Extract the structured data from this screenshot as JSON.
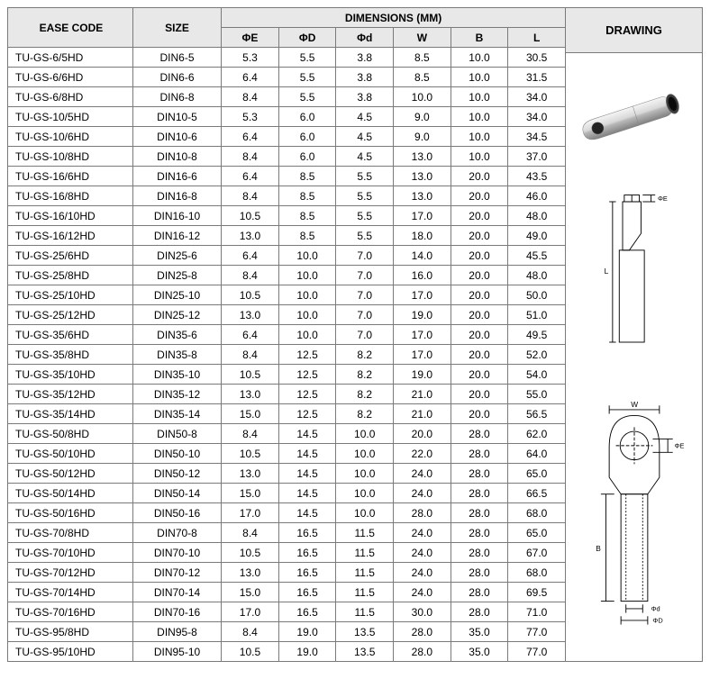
{
  "headers": {
    "ease_code": "EASE CODE",
    "size": "SIZE",
    "dimensions": "DIMENSIONS (MM)",
    "drawing": "DRAWING",
    "cols": [
      "ΦE",
      "ΦD",
      "Φd",
      "W",
      "B",
      "L"
    ]
  },
  "colors": {
    "header_bg": "#e8e8e8",
    "border": "#7a7a7a",
    "text": "#000000"
  },
  "rows": [
    {
      "code": "TU-GS-6/5HD",
      "size": "DIN6-5",
      "e": "5.3",
      "D": "5.5",
      "d": "3.8",
      "w": "8.5",
      "b": "10.0",
      "l": "30.5"
    },
    {
      "code": "TU-GS-6/6HD",
      "size": "DIN6-6",
      "e": "6.4",
      "D": "5.5",
      "d": "3.8",
      "w": "8.5",
      "b": "10.0",
      "l": "31.5"
    },
    {
      "code": "TU-GS-6/8HD",
      "size": "DIN6-8",
      "e": "8.4",
      "D": "5.5",
      "d": "3.8",
      "w": "10.0",
      "b": "10.0",
      "l": "34.0"
    },
    {
      "code": "TU-GS-10/5HD",
      "size": "DIN10-5",
      "e": "5.3",
      "D": "6.0",
      "d": "4.5",
      "w": "9.0",
      "b": "10.0",
      "l": "34.0"
    },
    {
      "code": "TU-GS-10/6HD",
      "size": "DIN10-6",
      "e": "6.4",
      "D": "6.0",
      "d": "4.5",
      "w": "9.0",
      "b": "10.0",
      "l": "34.5"
    },
    {
      "code": "TU-GS-10/8HD",
      "size": "DIN10-8",
      "e": "8.4",
      "D": "6.0",
      "d": "4.5",
      "w": "13.0",
      "b": "10.0",
      "l": "37.0"
    },
    {
      "code": "TU-GS-16/6HD",
      "size": "DIN16-6",
      "e": "6.4",
      "D": "8.5",
      "d": "5.5",
      "w": "13.0",
      "b": "20.0",
      "l": "43.5"
    },
    {
      "code": "TU-GS-16/8HD",
      "size": "DIN16-8",
      "e": "8.4",
      "D": "8.5",
      "d": "5.5",
      "w": "13.0",
      "b": "20.0",
      "l": "46.0"
    },
    {
      "code": "TU-GS-16/10HD",
      "size": "DIN16-10",
      "e": "10.5",
      "D": "8.5",
      "d": "5.5",
      "w": "17.0",
      "b": "20.0",
      "l": "48.0"
    },
    {
      "code": "TU-GS-16/12HD",
      "size": "DIN16-12",
      "e": "13.0",
      "D": "8.5",
      "d": "5.5",
      "w": "18.0",
      "b": "20.0",
      "l": "49.0"
    },
    {
      "code": "TU-GS-25/6HD",
      "size": "DIN25-6",
      "e": "6.4",
      "D": "10.0",
      "d": "7.0",
      "w": "14.0",
      "b": "20.0",
      "l": "45.5"
    },
    {
      "code": "TU-GS-25/8HD",
      "size": "DIN25-8",
      "e": "8.4",
      "D": "10.0",
      "d": "7.0",
      "w": "16.0",
      "b": "20.0",
      "l": "48.0"
    },
    {
      "code": "TU-GS-25/10HD",
      "size": "DIN25-10",
      "e": "10.5",
      "D": "10.0",
      "d": "7.0",
      "w": "17.0",
      "b": "20.0",
      "l": "50.0"
    },
    {
      "code": "TU-GS-25/12HD",
      "size": "DIN25-12",
      "e": "13.0",
      "D": "10.0",
      "d": "7.0",
      "w": "19.0",
      "b": "20.0",
      "l": "51.0"
    },
    {
      "code": "TU-GS-35/6HD",
      "size": "DIN35-6",
      "e": "6.4",
      "D": "10.0",
      "d": "7.0",
      "w": "17.0",
      "b": "20.0",
      "l": "49.5"
    },
    {
      "code": "TU-GS-35/8HD",
      "size": "DIN35-8",
      "e": "8.4",
      "D": "12.5",
      "d": "8.2",
      "w": "17.0",
      "b": "20.0",
      "l": "52.0"
    },
    {
      "code": "TU-GS-35/10HD",
      "size": "DIN35-10",
      "e": "10.5",
      "D": "12.5",
      "d": "8.2",
      "w": "19.0",
      "b": "20.0",
      "l": "54.0"
    },
    {
      "code": "TU-GS-35/12HD",
      "size": "DIN35-12",
      "e": "13.0",
      "D": "12.5",
      "d": "8.2",
      "w": "21.0",
      "b": "20.0",
      "l": "55.0"
    },
    {
      "code": "TU-GS-35/14HD",
      "size": "DIN35-14",
      "e": "15.0",
      "D": "12.5",
      "d": "8.2",
      "w": "21.0",
      "b": "20.0",
      "l": "56.5"
    },
    {
      "code": "TU-GS-50/8HD",
      "size": "DIN50-8",
      "e": "8.4",
      "D": "14.5",
      "d": "10.0",
      "w": "20.0",
      "b": "28.0",
      "l": "62.0"
    },
    {
      "code": "TU-GS-50/10HD",
      "size": "DIN50-10",
      "e": "10.5",
      "D": "14.5",
      "d": "10.0",
      "w": "22.0",
      "b": "28.0",
      "l": "64.0"
    },
    {
      "code": "TU-GS-50/12HD",
      "size": "DIN50-12",
      "e": "13.0",
      "D": "14.5",
      "d": "10.0",
      "w": "24.0",
      "b": "28.0",
      "l": "65.0"
    },
    {
      "code": "TU-GS-50/14HD",
      "size": "DIN50-14",
      "e": "15.0",
      "D": "14.5",
      "d": "10.0",
      "w": "24.0",
      "b": "28.0",
      "l": "66.5"
    },
    {
      "code": "TU-GS-50/16HD",
      "size": "DIN50-16",
      "e": "17.0",
      "D": "14.5",
      "d": "10.0",
      "w": "28.0",
      "b": "28.0",
      "l": "68.0"
    },
    {
      "code": "TU-GS-70/8HD",
      "size": "DIN70-8",
      "e": "8.4",
      "D": "16.5",
      "d": "11.5",
      "w": "24.0",
      "b": "28.0",
      "l": "65.0"
    },
    {
      "code": "TU-GS-70/10HD",
      "size": "DIN70-10",
      "e": "10.5",
      "D": "16.5",
      "d": "11.5",
      "w": "24.0",
      "b": "28.0",
      "l": "67.0"
    },
    {
      "code": "TU-GS-70/12HD",
      "size": "DIN70-12",
      "e": "13.0",
      "D": "16.5",
      "d": "11.5",
      "w": "24.0",
      "b": "28.0",
      "l": "68.0"
    },
    {
      "code": "TU-GS-70/14HD",
      "size": "DIN70-14",
      "e": "15.0",
      "D": "16.5",
      "d": "11.5",
      "w": "24.0",
      "b": "28.0",
      "l": "69.5"
    },
    {
      "code": "TU-GS-70/16HD",
      "size": "DIN70-16",
      "e": "17.0",
      "D": "16.5",
      "d": "11.5",
      "w": "30.0",
      "b": "28.0",
      "l": "71.0"
    },
    {
      "code": "TU-GS-95/8HD",
      "size": "DIN95-8",
      "e": "8.4",
      "D": "19.0",
      "d": "13.5",
      "w": "28.0",
      "b": "35.0",
      "l": "77.0"
    },
    {
      "code": "TU-GS-95/10HD",
      "size": "DIN95-10",
      "e": "10.5",
      "D": "19.0",
      "d": "13.5",
      "w": "28.0",
      "b": "35.0",
      "l": "77.0"
    }
  ],
  "drawing_labels": {
    "w": "W",
    "e": "ΦE",
    "b": "B",
    "l": "L",
    "d": "Φd",
    "D": "ΦD"
  }
}
